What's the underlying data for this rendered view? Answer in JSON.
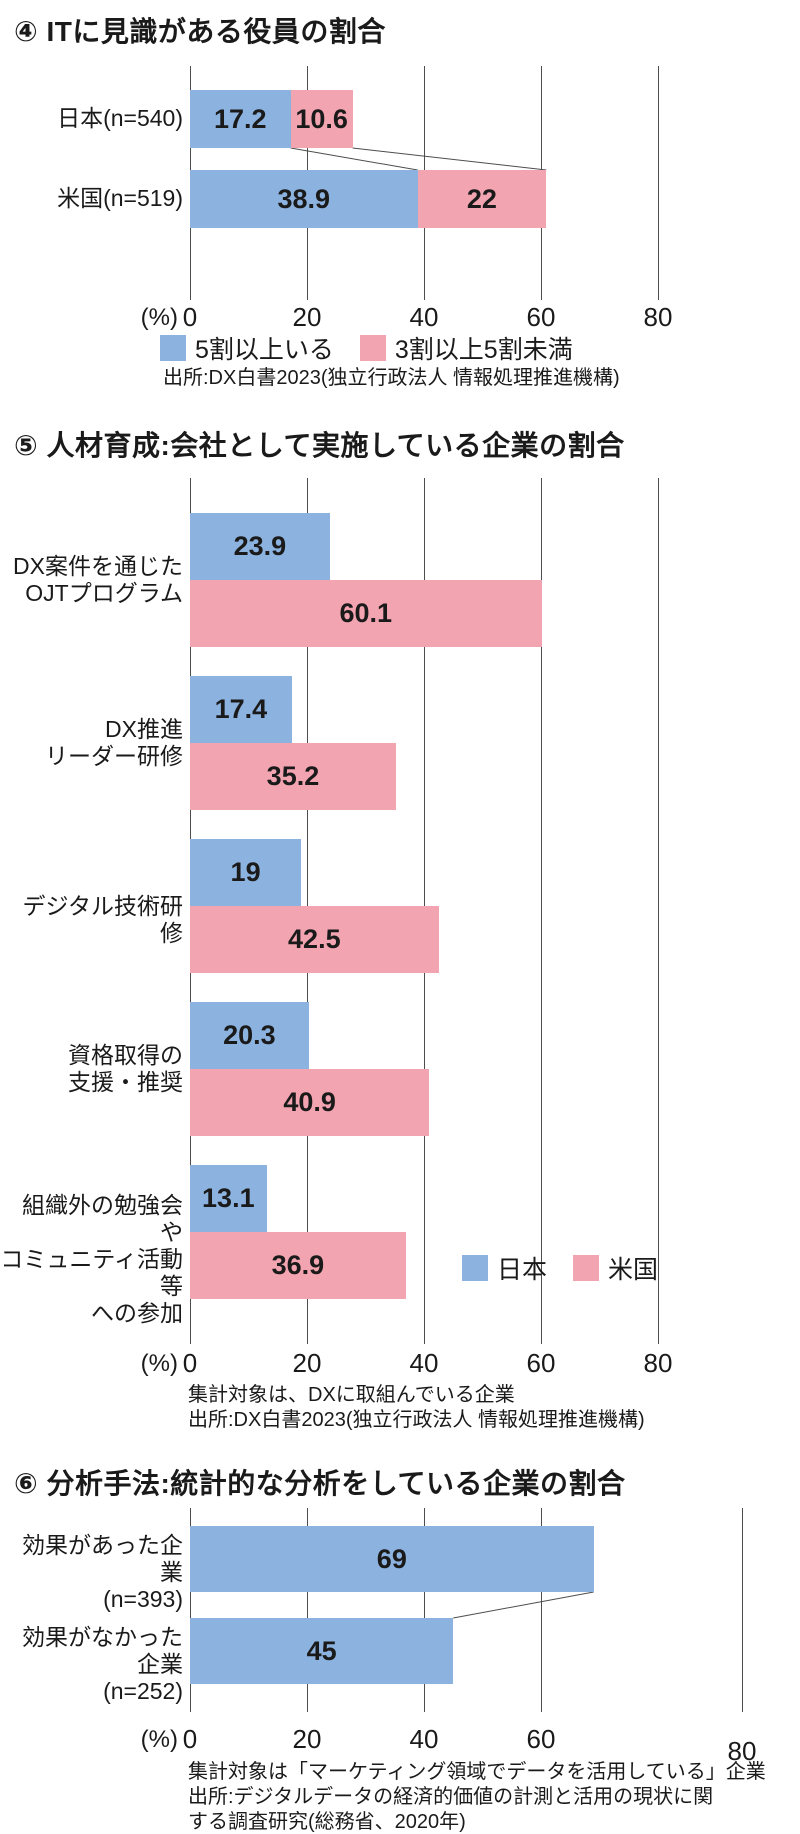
{
  "colors": {
    "japan_blue": "#8CB2DF",
    "us_pink": "#F3A4B1",
    "gridline": "#4d4d4d",
    "text": "#1a1a1a",
    "background": "#ffffff"
  },
  "chart_data": [
    {
      "id": "chart4",
      "type": "bar",
      "orientation": "horizontal",
      "stacked": true,
      "title": "④ ITに見識がある役員の割合",
      "unit_label": "(%)",
      "x_ticks": [
        0,
        20,
        40,
        60,
        80
      ],
      "xlim": [
        0,
        80
      ],
      "grid": true,
      "categories": [
        "日本(n=540)",
        "米国(n=519)"
      ],
      "series": [
        {
          "name": "5割以上いる",
          "color_key": "japan_blue",
          "values": [
            17.2,
            38.9
          ]
        },
        {
          "name": "3割以上5割未満",
          "color_key": "us_pink",
          "values": [
            10.6,
            22
          ]
        }
      ],
      "value_labels": [
        [
          "17.2",
          "10.6"
        ],
        [
          "38.9",
          "22"
        ]
      ],
      "legend_position": "below-axis-center",
      "source_lines": [
        "出所:DX白書2023(独立行政法人 情報処理推進機構)"
      ]
    },
    {
      "id": "chart5",
      "type": "bar",
      "orientation": "horizontal",
      "stacked": false,
      "title": "⑤ 人材育成:会社として実施している企業の割合",
      "unit_label": "(%)",
      "x_ticks": [
        0,
        20,
        40,
        60,
        80
      ],
      "xlim": [
        0,
        80
      ],
      "grid": true,
      "categories": [
        "DX案件を通じた\nOJTプログラム",
        "DX推進\nリーダー研修",
        "デジタル技術研修",
        "資格取得の\n支援・推奨",
        "組織外の勉強会や\nコミュニティ活動等\nへの参加"
      ],
      "series": [
        {
          "name": "日本",
          "color_key": "japan_blue",
          "values": [
            23.9,
            17.4,
            19,
            20.3,
            13.1
          ]
        },
        {
          "name": "米国",
          "color_key": "us_pink",
          "values": [
            60.1,
            35.2,
            42.5,
            40.9,
            36.9
          ]
        }
      ],
      "value_labels": [
        [
          "23.9",
          "17.4",
          "19",
          "20.3",
          "13.1"
        ],
        [
          "60.1",
          "35.2",
          "42.5",
          "40.9",
          "36.9"
        ]
      ],
      "legend_position": "inside-plot-right",
      "source_lines": [
        "集計対象は、DXに取組んでいる企業",
        "出所:DX白書2023(独立行政法人 情報処理推進機構)"
      ]
    },
    {
      "id": "chart6",
      "type": "bar",
      "orientation": "horizontal",
      "stacked": false,
      "title": "⑥ 分析手法:統計的な分析をしている企業の割合",
      "unit_label": "(%)",
      "x_ticks": [
        0,
        20,
        40,
        60,
        80
      ],
      "xlim": [
        0,
        80
      ],
      "grid": true,
      "categories": [
        "効果があった企業\n(n=393)",
        "効果がなかった企業\n(n=252)"
      ],
      "series": [
        {
          "name": "統計的な分析をしている企業の割合",
          "color_key": "japan_blue",
          "values": [
            69,
            45
          ]
        }
      ],
      "value_labels": [
        [
          "69",
          "45"
        ]
      ],
      "legend_position": "none",
      "source_lines": [
        "集計対象は「マーケティング領域でデータを活用している」企業",
        "出所:デジタルデータの経済的価値の計測と活用の現状に関",
        "する調査研究(総務省、2020年)"
      ]
    }
  ]
}
